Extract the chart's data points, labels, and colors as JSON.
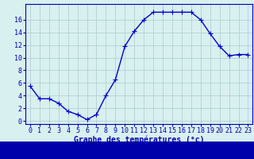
{
  "x": [
    0,
    1,
    2,
    3,
    4,
    5,
    6,
    7,
    8,
    9,
    10,
    11,
    12,
    13,
    14,
    15,
    16,
    17,
    18,
    19,
    20,
    21,
    22,
    23
  ],
  "y": [
    5.5,
    3.5,
    3.5,
    2.8,
    1.5,
    1.0,
    0.2,
    1.0,
    4.0,
    6.5,
    11.8,
    14.2,
    16.0,
    17.2,
    17.2,
    17.2,
    17.2,
    17.2,
    16.0,
    13.8,
    11.8,
    10.3,
    10.5,
    10.5
  ],
  "line_color": "#0000cc",
  "marker": "+",
  "marker_size": 4,
  "linewidth": 1.0,
  "xlabel": "Graphe des températures (°c)",
  "xlabel_fontsize": 7,
  "ylabel_ticks": [
    0,
    2,
    4,
    6,
    8,
    10,
    12,
    14,
    16
  ],
  "xtick_labels": [
    "0",
    "1",
    "2",
    "3",
    "4",
    "5",
    "6",
    "7",
    "8",
    "9",
    "10",
    "11",
    "12",
    "13",
    "14",
    "15",
    "16",
    "17",
    "18",
    "19",
    "20",
    "21",
    "22",
    "23"
  ],
  "ylim": [
    -0.5,
    18.5
  ],
  "xlim": [
    -0.5,
    23.5
  ],
  "background_color": "#d8f0f0",
  "grid_color": "#aacccc",
  "tick_color": "#0000aa",
  "tick_fontsize": 6,
  "spine_color": "#0000aa",
  "bottom_bar_color": "#0000aa"
}
